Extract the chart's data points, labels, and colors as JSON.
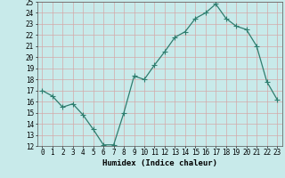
{
  "x": [
    0,
    1,
    2,
    3,
    4,
    5,
    6,
    7,
    8,
    9,
    10,
    11,
    12,
    13,
    14,
    15,
    16,
    17,
    18,
    19,
    20,
    21,
    22,
    23
  ],
  "y": [
    17,
    16.5,
    15.5,
    15.8,
    14.8,
    13.5,
    12.1,
    12.1,
    15.0,
    18.3,
    18.0,
    19.3,
    20.5,
    21.8,
    22.3,
    23.5,
    24.0,
    24.8,
    23.5,
    22.8,
    22.5,
    21.0,
    17.8,
    16.2
  ],
  "title": "",
  "xlabel": "Humidex (Indice chaleur)",
  "ylabel": "",
  "xlim": [
    -0.5,
    23.5
  ],
  "ylim": [
    12,
    25
  ],
  "yticks": [
    12,
    13,
    14,
    15,
    16,
    17,
    18,
    19,
    20,
    21,
    22,
    23,
    24,
    25
  ],
  "xticks": [
    0,
    1,
    2,
    3,
    4,
    5,
    6,
    7,
    8,
    9,
    10,
    11,
    12,
    13,
    14,
    15,
    16,
    17,
    18,
    19,
    20,
    21,
    22,
    23
  ],
  "line_color": "#2e7d6e",
  "marker": "+",
  "marker_size": 4,
  "bg_color": "#c8eaea",
  "grid_color": "#d4a8a8",
  "xlabel_fontsize": 6.5,
  "tick_fontsize": 5.5,
  "lw": 0.9
}
